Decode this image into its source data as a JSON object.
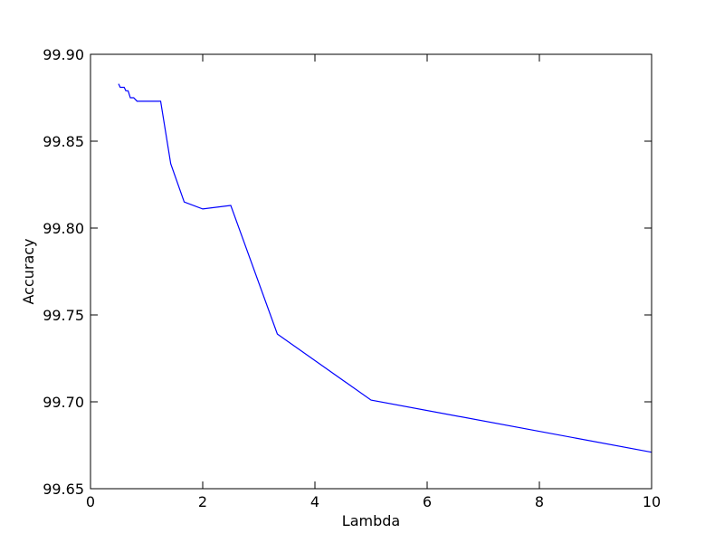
{
  "chart_data": {
    "type": "line",
    "title": "",
    "xlabel": "Lambda",
    "ylabel": "Accuracy",
    "xlim": [
      0,
      10
    ],
    "ylim": [
      99.65,
      99.9
    ],
    "xticks": [
      0,
      2,
      4,
      6,
      8,
      10
    ],
    "xtick_labels": [
      "0",
      "2",
      "4",
      "6",
      "8",
      "10"
    ],
    "yticks": [
      99.65,
      99.7,
      99.75,
      99.8,
      99.85,
      99.9
    ],
    "ytick_labels": [
      "99.65",
      "99.70",
      "99.75",
      "99.80",
      "99.85",
      "99.90"
    ],
    "grid": false,
    "series": [
      {
        "color": "#0000ff",
        "x": [
          0.5,
          0.53,
          0.56,
          0.6,
          0.63,
          0.67,
          0.71,
          0.77,
          0.83,
          1.0,
          1.25,
          1.43,
          1.67,
          2.0,
          2.5,
          3.33,
          5.0,
          10.0
        ],
        "y": [
          99.883,
          99.881,
          99.881,
          99.881,
          99.879,
          99.879,
          99.875,
          99.875,
          99.873,
          99.873,
          99.873,
          99.837,
          99.815,
          99.811,
          99.813,
          99.739,
          99.701,
          99.671
        ]
      }
    ]
  }
}
